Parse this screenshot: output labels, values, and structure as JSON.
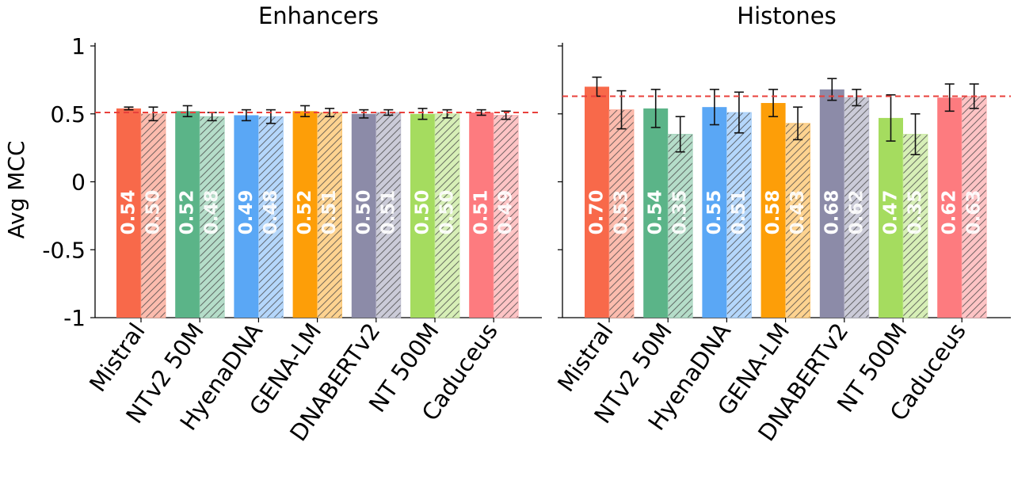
{
  "chart_data": {
    "type": "bar",
    "ylabel": "Avg MCC",
    "ylim": [
      -1,
      1
    ],
    "yticks": [
      1,
      0.5,
      0,
      -0.5,
      -1
    ],
    "ytick_labels": [
      "1",
      "0.5",
      "0",
      "-0.5",
      "-1"
    ],
    "grid": false,
    "categories": [
      "Mistral",
      "NTv2 50M",
      "HyenaDNA",
      "GENA-LM",
      "DNABERTv2",
      "NT 500M",
      "Caduceus"
    ],
    "category_colors": [
      "#f8694a",
      "#5bb488",
      "#5aa7f5",
      "#fd9e08",
      "#8c8ba8",
      "#a5dc5f",
      "#fd7b7f"
    ],
    "panels": [
      {
        "title": "Enhancers",
        "reference_line": 0.51,
        "series": [
          {
            "style": "solid",
            "values": [
              0.54,
              0.52,
              0.49,
              0.52,
              0.5,
              0.5,
              0.51
            ],
            "labels": [
              "0.54",
              "0.52",
              "0.49",
              "0.52",
              "0.50",
              "0.50",
              "0.51"
            ],
            "error": [
              0.01,
              0.04,
              0.04,
              0.04,
              0.03,
              0.04,
              0.02
            ]
          },
          {
            "style": "hatched",
            "values": [
              0.5,
              0.48,
              0.48,
              0.51,
              0.51,
              0.5,
              0.49
            ],
            "labels": [
              "0.50",
              "0.48",
              "0.48",
              "0.51",
              "0.51",
              "0.50",
              "0.49"
            ],
            "error": [
              0.05,
              0.03,
              0.05,
              0.03,
              0.02,
              0.03,
              0.03
            ]
          }
        ]
      },
      {
        "title": "Histones",
        "reference_line": 0.63,
        "series": [
          {
            "style": "solid",
            "values": [
              0.7,
              0.54,
              0.55,
              0.58,
              0.68,
              0.47,
              0.62
            ],
            "labels": [
              "0.70",
              "0.54",
              "0.55",
              "0.58",
              "0.68",
              "0.47",
              "0.62"
            ],
            "error": [
              0.07,
              0.14,
              0.13,
              0.1,
              0.08,
              0.17,
              0.1
            ]
          },
          {
            "style": "hatched",
            "values": [
              0.53,
              0.35,
              0.51,
              0.43,
              0.62,
              0.35,
              0.63
            ],
            "labels": [
              "0.53",
              "0.35",
              "0.51",
              "0.43",
              "0.62",
              "0.35",
              "0.63"
            ],
            "error": [
              0.14,
              0.13,
              0.15,
              0.12,
              0.06,
              0.15,
              0.09
            ]
          }
        ]
      }
    ]
  }
}
